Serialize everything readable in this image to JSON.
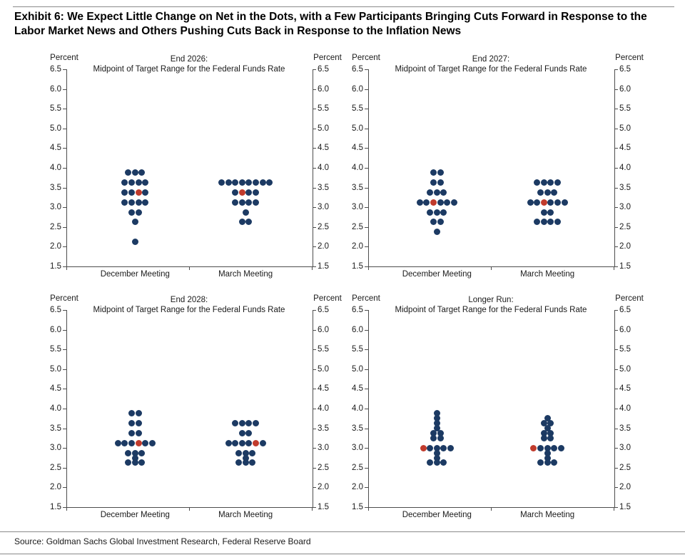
{
  "header": {
    "title_line1": "Exhibit 6: We Expect Little Change on Net in the Dots, with a Few Participants Bringing Cuts Forward in Response to the",
    "title_line2": "Labor Market News and Others Pushing Cuts Back in Response to the Inflation News"
  },
  "footer": {
    "source": "Source: Goldman Sachs Global Investment Research, Federal Reserve Board"
  },
  "colors": {
    "dot_navy": "#1c3a63",
    "dot_red": "#c13b2c",
    "axis": "#4d4d4d",
    "text": "#1a1a1a"
  },
  "chart_data": [
    {
      "type": "scatter",
      "title_line1": "End 2026:",
      "title_line2": "Midpoint of Target Range for the Federal Funds Rate",
      "axis_unit_left": "Percent",
      "axis_unit_right": "Percent",
      "ylim": [
        1.5,
        6.5
      ],
      "yticks": [
        "6.5",
        "6.0",
        "5.5",
        "5.0",
        "4.5",
        "4.0",
        "3.5",
        "3.0",
        "2.5",
        "2.0",
        "1.5"
      ],
      "grid": false,
      "categories": [
        "December Meeting",
        "March Meeting"
      ],
      "series": [
        {
          "name": "December Meeting",
          "median": 3.375,
          "dots": [
            {
              "v": 3.875,
              "n": 3
            },
            {
              "v": 3.625,
              "n": 4
            },
            {
              "v": 3.375,
              "n": 4,
              "red": 2
            },
            {
              "v": 3.125,
              "n": 4
            },
            {
              "v": 2.875,
              "n": 2
            },
            {
              "v": 2.625,
              "n": 1
            },
            {
              "v": 2.125,
              "n": 1
            }
          ]
        },
        {
          "name": "March Meeting",
          "median": 3.375,
          "dots": [
            {
              "v": 3.625,
              "n": 8
            },
            {
              "v": 3.375,
              "n": 4,
              "red": 1
            },
            {
              "v": 3.125,
              "n": 4
            },
            {
              "v": 2.875,
              "n": 1
            },
            {
              "v": 2.625,
              "n": 2
            }
          ]
        }
      ]
    },
    {
      "type": "scatter",
      "title_line1": "End 2027:",
      "title_line2": "Midpoint of Target Range for the Federal Funds Rate",
      "axis_unit_left": "Percent",
      "axis_unit_right": "Percent",
      "ylim": [
        1.5,
        6.5
      ],
      "yticks": [
        "6.5",
        "6.0",
        "5.5",
        "5.0",
        "4.5",
        "4.0",
        "3.5",
        "3.0",
        "2.5",
        "2.0",
        "1.5"
      ],
      "grid": false,
      "categories": [
        "December Meeting",
        "March Meeting"
      ],
      "series": [
        {
          "name": "December Meeting",
          "median": 3.125,
          "dots": [
            {
              "v": 3.875,
              "n": 2
            },
            {
              "v": 3.625,
              "n": 2
            },
            {
              "v": 3.375,
              "n": 3
            },
            {
              "v": 3.125,
              "n": 6,
              "red": 2
            },
            {
              "v": 2.875,
              "n": 3
            },
            {
              "v": 2.625,
              "n": 2
            },
            {
              "v": 2.375,
              "n": 1
            }
          ]
        },
        {
          "name": "March Meeting",
          "median": 3.125,
          "dots": [
            {
              "v": 3.625,
              "n": 4
            },
            {
              "v": 3.375,
              "n": 3
            },
            {
              "v": 3.125,
              "n": 6,
              "red": 2
            },
            {
              "v": 2.875,
              "n": 2
            },
            {
              "v": 2.625,
              "n": 4
            }
          ]
        }
      ]
    },
    {
      "type": "scatter",
      "title_line1": "End 2028:",
      "title_line2": "Midpoint of Target Range for the Federal Funds Rate",
      "axis_unit_left": "Percent",
      "axis_unit_right": "Percent",
      "ylim": [
        1.5,
        6.5
      ],
      "yticks": [
        "6.5",
        "6.0",
        "5.5",
        "5.0",
        "4.5",
        "4.0",
        "3.5",
        "3.0",
        "2.5",
        "2.0",
        "1.5"
      ],
      "grid": false,
      "categories": [
        "December Meeting",
        "March Meeting"
      ],
      "series": [
        {
          "name": "December Meeting",
          "median": 3.125,
          "dots": [
            {
              "v": 3.875,
              "n": 2
            },
            {
              "v": 3.625,
              "n": 2
            },
            {
              "v": 3.375,
              "n": 2
            },
            {
              "v": 3.125,
              "n": 6,
              "red": 3
            },
            {
              "v": 2.875,
              "n": 3
            },
            {
              "v": 2.75,
              "n": 1
            },
            {
              "v": 2.625,
              "n": 3
            }
          ]
        },
        {
          "name": "March Meeting",
          "median": 3.125,
          "dots": [
            {
              "v": 3.625,
              "n": 4
            },
            {
              "v": 3.375,
              "n": 2
            },
            {
              "v": 3.125,
              "n": 6,
              "red": 4
            },
            {
              "v": 2.875,
              "n": 3
            },
            {
              "v": 2.75,
              "n": 1
            },
            {
              "v": 2.625,
              "n": 3
            }
          ]
        }
      ]
    },
    {
      "type": "scatter",
      "title_line1": "Longer Run:",
      "title_line2": "Midpoint of Target Range for the Federal Funds Rate",
      "axis_unit_left": "Percent",
      "axis_unit_right": "Percent",
      "ylim": [
        1.5,
        6.5
      ],
      "yticks": [
        "6.5",
        "6.0",
        "5.5",
        "5.0",
        "4.5",
        "4.0",
        "3.5",
        "3.0",
        "2.5",
        "2.0",
        "1.5"
      ],
      "grid": false,
      "categories": [
        "December Meeting",
        "March Meeting"
      ],
      "series": [
        {
          "name": "December Meeting",
          "median": 3.0,
          "dots": [
            {
              "v": 3.875,
              "n": 1
            },
            {
              "v": 3.75,
              "n": 1
            },
            {
              "v": 3.625,
              "n": 1
            },
            {
              "v": 3.5,
              "n": 1
            },
            {
              "v": 3.375,
              "n": 2
            },
            {
              "v": 3.25,
              "n": 2
            },
            {
              "v": 3.0,
              "n": 5,
              "red": 0
            },
            {
              "v": 2.875,
              "n": 1
            },
            {
              "v": 2.75,
              "n": 1
            },
            {
              "v": 2.625,
              "n": 3
            }
          ]
        },
        {
          "name": "March Meeting",
          "median": 3.0,
          "dots": [
            {
              "v": 3.75,
              "n": 1
            },
            {
              "v": 3.625,
              "n": 2
            },
            {
              "v": 3.5,
              "n": 1
            },
            {
              "v": 3.375,
              "n": 2
            },
            {
              "v": 3.25,
              "n": 2
            },
            {
              "v": 3.0,
              "n": 5,
              "red": 0
            },
            {
              "v": 2.875,
              "n": 1
            },
            {
              "v": 2.75,
              "n": 1
            },
            {
              "v": 2.625,
              "n": 3
            }
          ]
        }
      ]
    }
  ]
}
